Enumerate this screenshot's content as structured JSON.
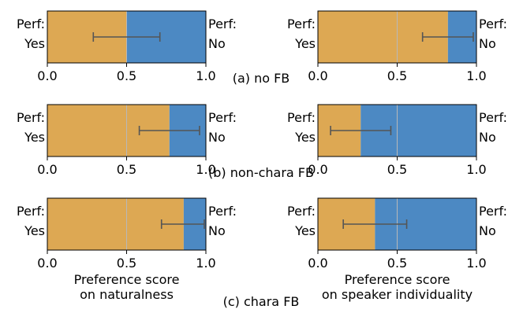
{
  "colors": {
    "yes": "#DDA853",
    "no": "#4C89C3",
    "grid": "#b8b8b8",
    "errorbar": "#555555",
    "axis": "#000000"
  },
  "chart_data": [
    {
      "type": "bar",
      "orientation": "horizontal-stacked",
      "row": "a",
      "column": "naturalness",
      "left_label": [
        "Perf:",
        "Yes"
      ],
      "right_label": [
        "Perf:",
        "No"
      ],
      "xlim": [
        0,
        1
      ],
      "xticks": [
        "0.0",
        "0.5",
        "1.0"
      ],
      "yes_value": 0.5,
      "error_interval": [
        0.29,
        0.71
      ],
      "xlabel": []
    },
    {
      "type": "bar",
      "orientation": "horizontal-stacked",
      "row": "a",
      "column": "speaker_individuality",
      "left_label": [
        "Perf:",
        "Yes"
      ],
      "right_label": [
        "Perf:",
        "No"
      ],
      "xlim": [
        0,
        1
      ],
      "xticks": [
        "0.0",
        "0.5",
        "1.0"
      ],
      "yes_value": 0.82,
      "error_interval": [
        0.66,
        0.98
      ],
      "xlabel": []
    },
    {
      "type": "bar",
      "orientation": "horizontal-stacked",
      "row": "b",
      "column": "naturalness",
      "left_label": [
        "Perf:",
        "Yes"
      ],
      "right_label": [
        "Perf:",
        "No"
      ],
      "xlim": [
        0,
        1
      ],
      "xticks": [
        "0.0",
        "0.5",
        "1.0"
      ],
      "yes_value": 0.77,
      "error_interval": [
        0.58,
        0.96
      ],
      "xlabel": []
    },
    {
      "type": "bar",
      "orientation": "horizontal-stacked",
      "row": "b",
      "column": "speaker_individuality",
      "left_label": [
        "Perf:",
        "Yes"
      ],
      "right_label": [
        "Perf:",
        "No"
      ],
      "xlim": [
        0,
        1
      ],
      "xticks": [
        "0.0",
        "0.5",
        "1.0"
      ],
      "yes_value": 0.27,
      "error_interval": [
        0.08,
        0.46
      ],
      "xlabel": []
    },
    {
      "type": "bar",
      "orientation": "horizontal-stacked",
      "row": "c",
      "column": "naturalness",
      "left_label": [
        "Perf:",
        "Yes"
      ],
      "right_label": [
        "Perf:",
        "No"
      ],
      "xlim": [
        0,
        1
      ],
      "xticks": [
        "0.0",
        "0.5",
        "1.0"
      ],
      "yes_value": 0.86,
      "error_interval": [
        0.72,
        0.99
      ],
      "xlabel": [
        "Preference score",
        "on naturalness"
      ]
    },
    {
      "type": "bar",
      "orientation": "horizontal-stacked",
      "row": "c",
      "column": "speaker_individuality",
      "left_label": [
        "Perf:",
        "Yes"
      ],
      "right_label": [
        "Perf:",
        "No"
      ],
      "xlim": [
        0,
        1
      ],
      "xticks": [
        "0.0",
        "0.5",
        "1.0"
      ],
      "yes_value": 0.36,
      "error_interval": [
        0.16,
        0.56
      ],
      "xlabel": [
        "Preference score",
        "on speaker individuality"
      ]
    }
  ],
  "captions": {
    "a": "(a) no FB",
    "b": "(b) non-chara FB",
    "c": "(c) chara FB"
  }
}
